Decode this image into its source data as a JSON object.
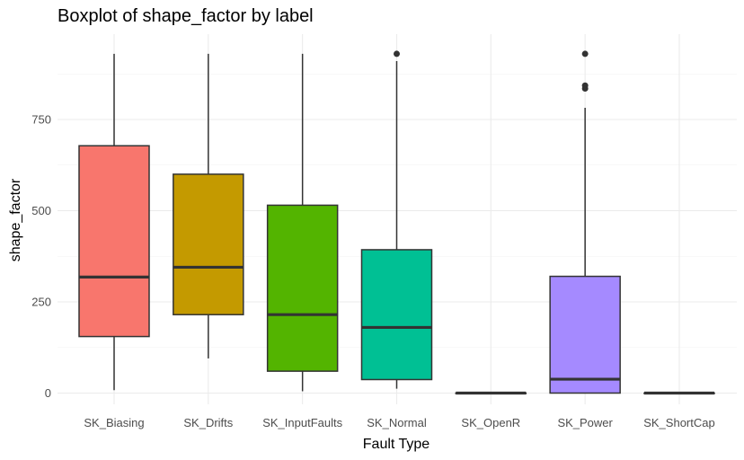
{
  "chart_data": {
    "type": "boxplot",
    "title": "Boxplot of shape_factor by label",
    "xlabel": "Fault Type",
    "ylabel": "shape_factor",
    "ylim": [
      0,
      930
    ],
    "yticks": [
      0,
      250,
      500,
      750
    ],
    "grid": true,
    "legend": "none",
    "categories": [
      "SK_Biasing",
      "SK_Drifts",
      "SK_InputFaults",
      "SK_Normal",
      "SK_OpenR",
      "SK_Power",
      "SK_ShortCap"
    ],
    "boxes": [
      {
        "category": "SK_Biasing",
        "color": "#F8766D",
        "whisker_low": 8,
        "q1": 155,
        "median": 318,
        "q3": 678,
        "whisker_high": 930,
        "outliers": []
      },
      {
        "category": "SK_Drifts",
        "color": "#C49A00",
        "whisker_low": 95,
        "q1": 215,
        "median": 345,
        "q3": 600,
        "whisker_high": 930,
        "outliers": []
      },
      {
        "category": "SK_InputFaults",
        "color": "#53B400",
        "whisker_low": 5,
        "q1": 60,
        "median": 215,
        "q3": 515,
        "whisker_high": 930,
        "outliers": []
      },
      {
        "category": "SK_Normal",
        "color": "#00C094",
        "whisker_low": 12,
        "q1": 37,
        "median": 180,
        "q3": 393,
        "whisker_high": 910,
        "outliers": [
          930
        ]
      },
      {
        "category": "SK_OpenR",
        "color": "#00B6EB",
        "whisker_low": 0,
        "q1": 0,
        "median": 0,
        "q3": 0,
        "whisker_high": 0,
        "outliers": []
      },
      {
        "category": "SK_Power",
        "color": "#A58AFF",
        "whisker_low": 0,
        "q1": 0,
        "median": 38,
        "q3": 320,
        "whisker_high": 782,
        "outliers": [
          835,
          843,
          930
        ]
      },
      {
        "category": "SK_ShortCap",
        "color": "#FB61D7",
        "whisker_low": 0,
        "q1": 0,
        "median": 0,
        "q3": 0,
        "whisker_high": 0,
        "outliers": []
      }
    ]
  }
}
